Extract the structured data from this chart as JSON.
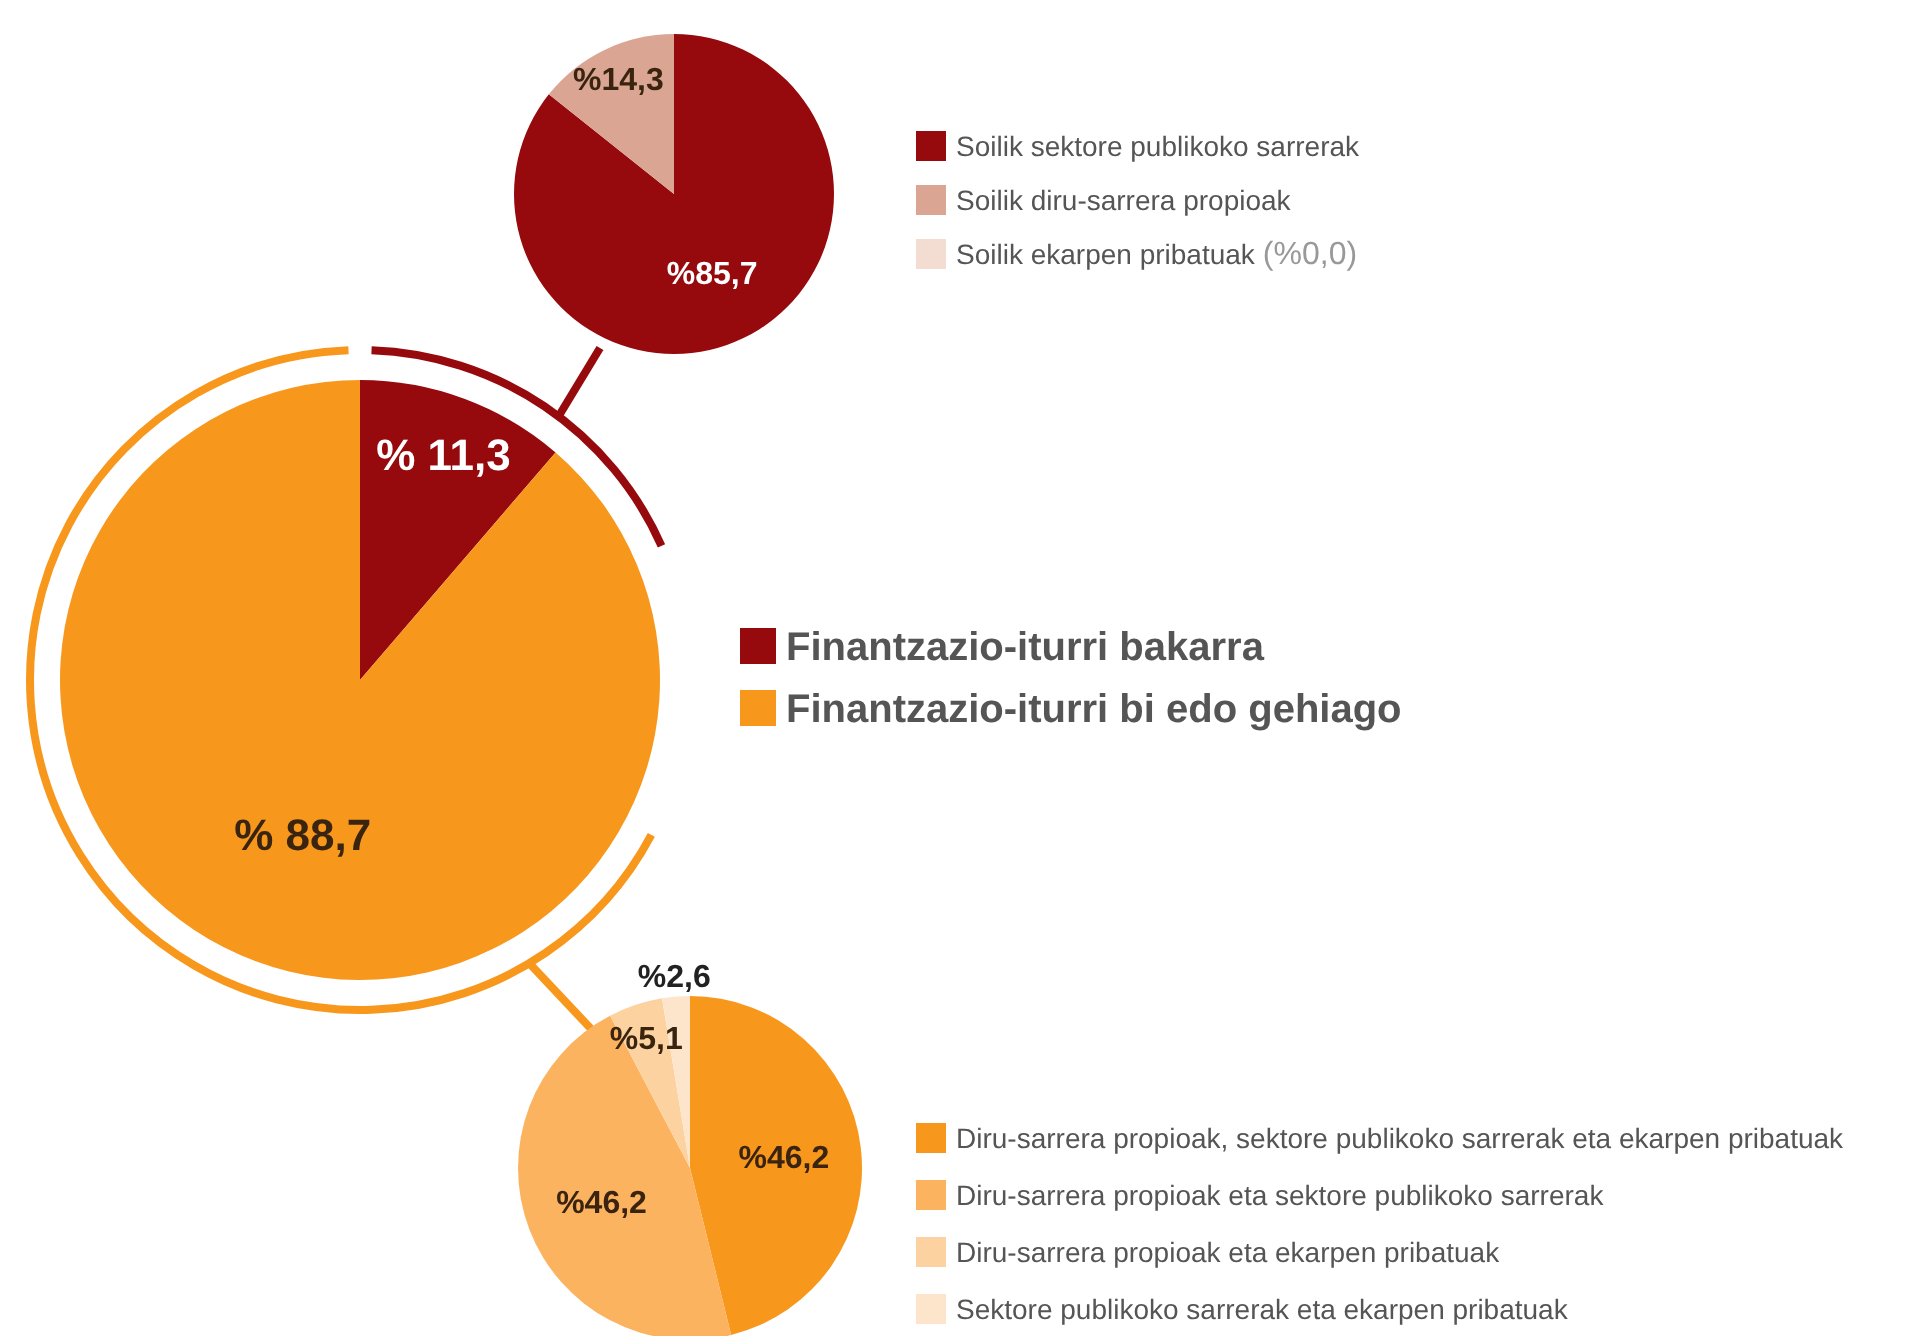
{
  "chart_data": [
    {
      "type": "pie",
      "categories": [
        "Finantzazio-iturri bakarra",
        "Finantzazio-iturri bi edo gehiago"
      ],
      "values": [
        11.3,
        88.7
      ],
      "colors": [
        "#960a0d",
        "#f7981d"
      ],
      "value_labels": [
        "% 11,3",
        "% 88,7"
      ],
      "legend": "right"
    },
    {
      "type": "pie",
      "categories": [
        "Soilik sektore publikoko sarrerak",
        "Soilik diru-sarrera propioak",
        "Soilik ekarpen pribatuak"
      ],
      "values": [
        85.7,
        14.3,
        0
      ],
      "colors": [
        "#960a0d",
        "#dba593",
        "#f3ddd3"
      ],
      "value_labels": [
        "%85,7",
        "%14,3",
        "(%0,0)"
      ],
      "legend": "right"
    },
    {
      "type": "pie",
      "categories": [
        "Diru-sarrera propioak, sektore publikoko sarrerak eta ekarpen pribatuak",
        "Diru-sarrera propioak eta sektore publikoko sarrerak",
        "Diru-sarrera propioak eta ekarpen pribatuak",
        "Sektore publikoko sarrerak eta ekarpen pribatuak"
      ],
      "values": [
        46.2,
        46.2,
        5.1,
        2.6
      ],
      "colors": [
        "#f7981d",
        "#fbb360",
        "#fcd3a0",
        "#fde5cb"
      ],
      "value_labels": [
        "%46,2",
        "%46,2",
        "%5,1",
        "%2,6"
      ],
      "legend": "right"
    }
  ]
}
